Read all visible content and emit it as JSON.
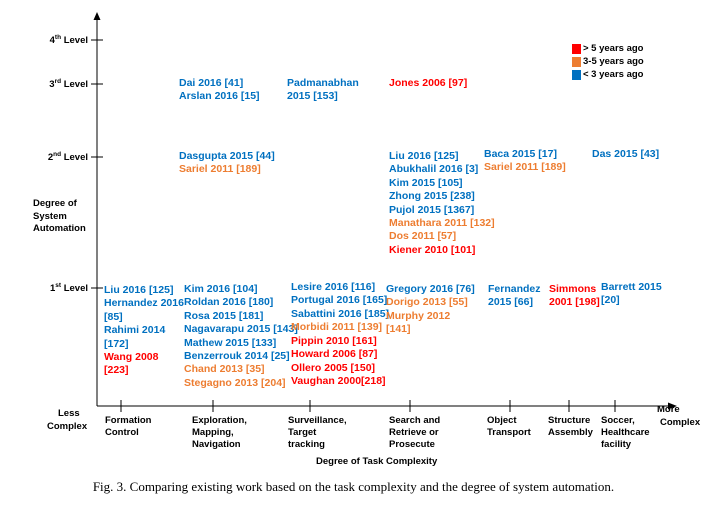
{
  "colors": {
    "older_5": "#ff0000",
    "between_3_5": "#ed7d31",
    "under_3": "#0070c0"
  },
  "legend": [
    {
      "label": "> 5 years ago",
      "color": "#ff0000"
    },
    {
      "label": "3-5 years ago",
      "color": "#ed7d31"
    },
    {
      "label": "< 3 years ago",
      "color": "#0070c0"
    }
  ],
  "y_axis": {
    "title_lines": [
      "Degree of",
      "System",
      "Automation"
    ],
    "levels": [
      {
        "num": "4",
        "sup": "th",
        "word": "Level"
      },
      {
        "num": "3",
        "sup": "rd",
        "word": "Level"
      },
      {
        "num": "2",
        "sup": "nd",
        "word": "Level"
      },
      {
        "num": "1",
        "sup": "st",
        "word": "Level"
      }
    ]
  },
  "x_axis": {
    "title": "Degree of Task Complexity",
    "less_lines": [
      "Less",
      "Complex"
    ],
    "more_lines": [
      "More",
      "Complex"
    ],
    "categories": [
      [
        "Formation",
        "Control"
      ],
      [
        "Exploration,",
        "Mapping,",
        "Navigation"
      ],
      [
        "Surveillance,",
        "Target",
        "tracking"
      ],
      [
        "Search and",
        "Retrieve or",
        "Prosecute"
      ],
      [
        "Object",
        "Transport"
      ],
      [
        "Structure",
        "Assembly"
      ],
      [
        "Soccer,",
        "Healthcare",
        "facility"
      ]
    ]
  },
  "cells": [
    {
      "lines": [
        {
          "text": "Dai 2016 [41]",
          "c": "blue"
        },
        {
          "text": "Arslan 2016 [15]",
          "c": "blue"
        }
      ]
    },
    {
      "lines": [
        {
          "text": "Padmanabhan",
          "c": "blue"
        },
        {
          "text": "2015 [153]",
          "c": "blue"
        }
      ]
    },
    {
      "lines": [
        {
          "text": "Jones 2006 [97]",
          "c": "red"
        }
      ]
    },
    {
      "lines": [
        {
          "text": "Dasgupta 2015 [44]",
          "c": "blue"
        },
        {
          "text": "Sariel 2011 [189]",
          "c": "orange"
        }
      ]
    },
    {
      "lines": [
        {
          "text": "Liu 2016 [125]",
          "c": "blue"
        },
        {
          "text": "Abukhalil 2016 [3]",
          "c": "blue"
        },
        {
          "text": "Kim 2015 [105]",
          "c": "blue"
        },
        {
          "text": "Zhong 2015 [238]",
          "c": "blue"
        },
        {
          "text": "Pujol 2015 [1367]",
          "c": "blue"
        },
        {
          "text": "Manathara 2011 [132]",
          "c": "orange"
        },
        {
          "text": "Dos 2011 [57]",
          "c": "orange"
        },
        {
          "text": "Kiener 2010 [101]",
          "c": "red"
        }
      ]
    },
    {
      "lines": [
        {
          "text": "Baca 2015 [17]",
          "c": "blue"
        },
        {
          "text": "Sariel 2011 [189]",
          "c": "orange"
        }
      ]
    },
    {
      "lines": [
        {
          "text": "Das 2015 [43]",
          "c": "blue"
        }
      ]
    },
    {
      "lines": [
        {
          "text": "Liu 2016 [125]",
          "c": "blue"
        },
        {
          "text": "Hernandez 2016",
          "c": "blue"
        },
        {
          "text": "[85]",
          "c": "blue"
        },
        {
          "text": "Rahimi 2014",
          "c": "blue"
        },
        {
          "text": "[172]",
          "c": "blue"
        },
        {
          "text": "Wang 2008",
          "c": "red"
        },
        {
          "text": "[223]",
          "c": "red"
        }
      ]
    },
    {
      "lines": [
        {
          "text": "Kim 2016 [104]",
          "c": "blue"
        },
        {
          "text": "Roldan 2016 [180]",
          "c": "blue"
        },
        {
          "text": "Rosa 2015 [181]",
          "c": "blue"
        },
        {
          "text": "Nagavarapu 2015 [143]",
          "c": "blue"
        },
        {
          "text": "Mathew 2015 [133]",
          "c": "blue"
        },
        {
          "text": "Benzerrouk 2014 [25]",
          "c": "blue"
        },
        {
          "text": "Chand 2013 [35]",
          "c": "orange"
        },
        {
          "text": "Stegagno 2013 [204]",
          "c": "orange"
        }
      ]
    },
    {
      "lines": [
        {
          "text": "Lesire 2016 [116]",
          "c": "blue"
        },
        {
          "text": "Portugal 2016 [165]",
          "c": "blue"
        },
        {
          "text": "Sabattini 2016 [185]",
          "c": "blue"
        }
      ]
    },
    {
      "lines": [
        {
          "text": "Morbidi 2011 [139]",
          "c": "orange"
        }
      ]
    },
    {
      "lines": [
        {
          "text": "Pippin 2010 [161]",
          "c": "red"
        },
        {
          "text": "Howard 2006 [87]",
          "c": "red"
        },
        {
          "text": "Ollero 2005 [150]",
          "c": "red"
        },
        {
          "text": "Vaughan 2000[218]",
          "c": "red"
        }
      ]
    },
    {
      "lines": [
        {
          "text": "Gregory 2016 [76]",
          "c": "blue"
        },
        {
          "text": "Dorigo 2013 [55]",
          "c": "orange"
        },
        {
          "text": "Murphy 2012",
          "c": "orange"
        }
      ]
    },
    {
      "lines": [
        {
          "text": "[141]",
          "c": "orange"
        }
      ]
    },
    {
      "lines": [
        {
          "text": "Fernandez",
          "c": "blue"
        },
        {
          "text": "2015 [66]",
          "c": "blue"
        }
      ]
    },
    {
      "lines": [
        {
          "text": "Simmons",
          "c": "red"
        },
        {
          "text": "2001 [198]",
          "c": "red"
        }
      ]
    },
    {
      "lines": [
        {
          "text": "Barrett 2015",
          "c": "blue"
        },
        {
          "text": "[20]",
          "c": "blue"
        }
      ]
    }
  ],
  "caption": "Fig. 3.  Comparing existing work based on the task complexity and the degree of system automation."
}
